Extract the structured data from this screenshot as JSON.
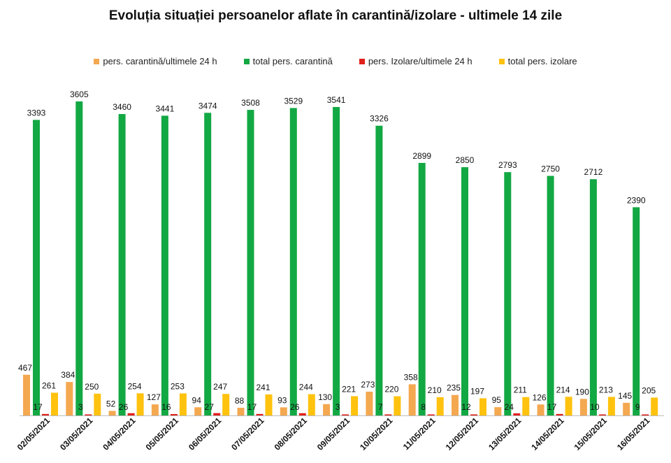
{
  "chart_data": {
    "type": "bar",
    "title": "Evoluția situației persoanelor aflate în carantină/izolare - ultimele 14 zile",
    "xlabel": "",
    "ylabel": "",
    "legend_position": "top",
    "grid": false,
    "ylim": [
      0,
      3700
    ],
    "categories": [
      "02/05/2021",
      "03/05/2021",
      "04/05/2021",
      "05/05/2021",
      "06/05/2021",
      "07/05/2021",
      "08/05/2021",
      "09/05/2021",
      "10/05/2021",
      "11/05/2021",
      "12/05/2021",
      "13/05/2021",
      "14/05/2021",
      "15/05/2021",
      "16/05/2021"
    ],
    "series": [
      {
        "name": "pers. carantină/ultimele 24 h",
        "color": "#F4A850",
        "values": [
          467,
          384,
          52,
          127,
          94,
          88,
          93,
          130,
          273,
          358,
          235,
          95,
          126,
          190,
          145
        ]
      },
      {
        "name": "total pers. carantină",
        "color": "#12A843",
        "values": [
          3393,
          3605,
          3460,
          3441,
          3474,
          3508,
          3529,
          3541,
          3326,
          2899,
          2850,
          2793,
          2750,
          2712,
          2390
        ]
      },
      {
        "name": "pers. Izolare/ultimele 24 h",
        "color": "#E0201B",
        "values": [
          17,
          3,
          26,
          16,
          27,
          17,
          26,
          3,
          7,
          8,
          12,
          24,
          17,
          10,
          9
        ]
      },
      {
        "name": "total pers. izolare",
        "color": "#FFC20E",
        "values": [
          261,
          250,
          254,
          253,
          247,
          241,
          244,
          221,
          220,
          210,
          197,
          211,
          214,
          213,
          205
        ]
      }
    ]
  }
}
